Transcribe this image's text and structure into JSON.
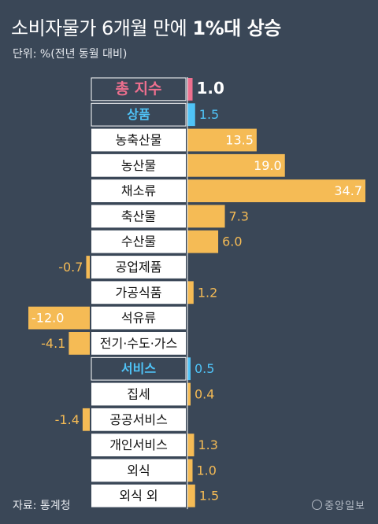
{
  "header": {
    "title_light": "소비자물가 6개월 만에",
    "title_bold": "1%대 상승",
    "unit": "단위: %(전년 동월 대비)"
  },
  "footer": {
    "source": "자료: 통계청",
    "logo": "중앙일보"
  },
  "colors": {
    "background": "#3a4757",
    "bar": "#f5bb55",
    "label_box": "#ffffff",
    "total_accent": "#ee6f8e",
    "section_accent": "#4fc3f7",
    "value_text": "#f5bb55"
  },
  "chart_data": {
    "type": "bar",
    "orientation": "horizontal",
    "title": "소비자물가 6개월 만에 1%대 상승",
    "ylabel": "",
    "xlabel": "",
    "unit": "%(전년 동월 대비)",
    "categories": [
      "총 지수",
      "상품",
      "농축산물",
      "농산물",
      "채소류",
      "축산물",
      "수산물",
      "공업제품",
      "가공식품",
      "석유류",
      "전기·수도·가스",
      "서비스",
      "집세",
      "공공서비스",
      "개인서비스",
      "외식",
      "외식 외"
    ],
    "values": [
      1.0,
      1.5,
      13.5,
      19.0,
      34.7,
      7.3,
      6.0,
      -0.7,
      1.2,
      -12.0,
      -4.1,
      0.5,
      0.4,
      -1.4,
      1.3,
      1.0,
      1.5
    ],
    "value_labels": [
      "1.0",
      "1.5",
      "13.5",
      "19.0",
      "34.7",
      "7.3",
      "6.0",
      "-0.7",
      "1.2",
      "-12.0",
      "-4.1",
      "0.5",
      "0.4",
      "-1.4",
      "1.3",
      "1.0",
      "1.5"
    ],
    "row_style": [
      "total",
      "section",
      "item",
      "item",
      "item",
      "item",
      "item",
      "item",
      "item",
      "item",
      "item",
      "section",
      "item",
      "item",
      "item",
      "item",
      "item"
    ],
    "xlim": [
      -12.0,
      34.7
    ]
  }
}
